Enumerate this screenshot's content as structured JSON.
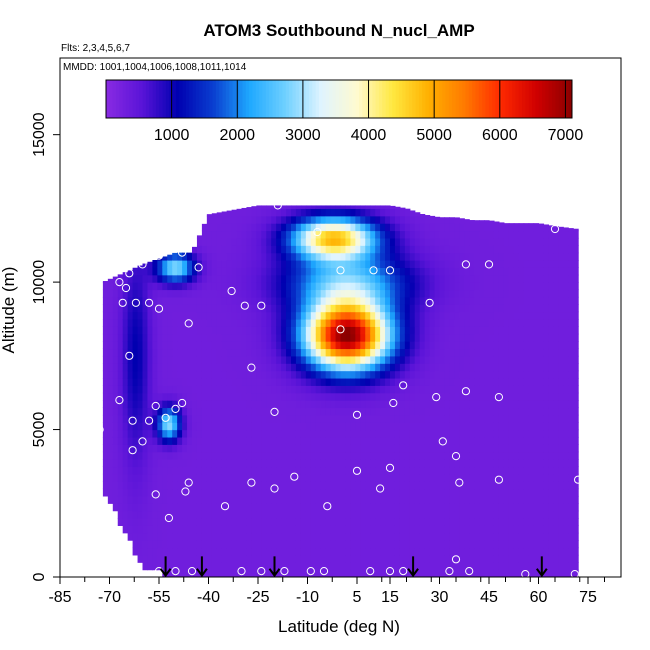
{
  "chart_data": {
    "type": "heatmap",
    "title": "ATOM3 Southbound N_nucl_AMP",
    "flights_label": "Flts: 2,3,4,5,6,7",
    "mmdd_label": "MMDD: 1001,1004,1006,1008,1011,1014",
    "xlabel": "Latitude (deg N)",
    "ylabel": "Altitude (m)",
    "xlim": [
      -85,
      85
    ],
    "ylim": [
      0,
      17600
    ],
    "x_ticks": [
      -85,
      -70,
      -55,
      -40,
      -25,
      -10,
      5,
      15,
      30,
      45,
      60,
      75
    ],
    "x_tick_labels": [
      "-85",
      "-70",
      "-55",
      "-40",
      "-25",
      "-10",
      "5",
      "15",
      "30",
      "45",
      "60",
      "75"
    ],
    "y_ticks": [
      0,
      5000,
      10000,
      15000
    ],
    "y_tick_labels": [
      "0",
      "5000",
      "10000",
      "15000"
    ],
    "colorbar": {
      "min": 0,
      "max": 7100,
      "ticks": [
        1000,
        2000,
        3000,
        4000,
        5000,
        6000,
        7000
      ],
      "tick_labels": [
        "1000",
        "2000",
        "3000",
        "4000",
        "5000",
        "6000",
        "7000"
      ],
      "colors": [
        "#8a2be2",
        "#5a14d8",
        "#0000b0",
        "#0a3fd0",
        "#1ea8ff",
        "#6fd0ff",
        "#dff4ff",
        "#fffad0",
        "#ffe840",
        "#ffb000",
        "#ff7a00",
        "#ff2a00",
        "#d00000",
        "#8a0000"
      ]
    },
    "background_value": 300,
    "field_envelope": {
      "lat": [
        -72,
        -60,
        -50,
        -45,
        -40,
        -35,
        -30,
        -25,
        -20,
        -15,
        -10,
        -5,
        0,
        5,
        10,
        15,
        20,
        25,
        30,
        35,
        40,
        45,
        50,
        55,
        60,
        65,
        72
      ],
      "top_m": [
        10000,
        10600,
        11000,
        11000,
        12300,
        12400,
        12500,
        12600,
        12600,
        12600,
        12600,
        12600,
        12600,
        12600,
        12600,
        12600,
        12500,
        12300,
        12200,
        12200,
        12100,
        12100,
        12000,
        12000,
        12000,
        11900,
        11800
      ],
      "bottom_m": [
        3000,
        300,
        0,
        0,
        0,
        0,
        0,
        0,
        0,
        0,
        0,
        0,
        0,
        0,
        0,
        0,
        0,
        0,
        0,
        0,
        0,
        0,
        0,
        0,
        0,
        0,
        0
      ]
    },
    "features": [
      {
        "lat": 2,
        "alt": 8200,
        "sx": 9,
        "sy": 800,
        "amp": 6800
      },
      {
        "lat": -2,
        "alt": 11500,
        "sx": 9,
        "sy": 500,
        "amp": 4400
      },
      {
        "lat": 2,
        "alt": 10000,
        "sx": 13,
        "sy": 700,
        "amp": 2200
      },
      {
        "lat": -50,
        "alt": 10500,
        "sx": 4,
        "sy": 350,
        "amp": 2600
      },
      {
        "lat": -52,
        "alt": 5200,
        "sx": 2.5,
        "sy": 400,
        "amp": 2600
      },
      {
        "lat": -62,
        "alt": 7500,
        "sx": 3,
        "sy": 2500,
        "amp": 800
      }
    ],
    "observations": [
      {
        "lat": -81,
        "alt": 9900
      },
      {
        "lat": -75,
        "alt": 9950
      },
      {
        "lat": -67,
        "alt": 10000
      },
      {
        "lat": -65,
        "alt": 9800
      },
      {
        "lat": -64,
        "alt": 10300
      },
      {
        "lat": -60,
        "alt": 10600
      },
      {
        "lat": -55,
        "alt": 10900
      },
      {
        "lat": -48,
        "alt": 11000
      },
      {
        "lat": -43,
        "alt": 10500
      },
      {
        "lat": -66,
        "alt": 9300
      },
      {
        "lat": -62,
        "alt": 9300
      },
      {
        "lat": -58,
        "alt": 9300
      },
      {
        "lat": -55,
        "alt": 9100
      },
      {
        "lat": -46,
        "alt": 8600
      },
      {
        "lat": -33,
        "alt": 9700
      },
      {
        "lat": -29,
        "alt": 9200
      },
      {
        "lat": -24,
        "alt": 9200
      },
      {
        "lat": -19,
        "alt": 12600
      },
      {
        "lat": -7,
        "alt": 11700
      },
      {
        "lat": 26,
        "alt": 12500
      },
      {
        "lat": 65,
        "alt": 11800
      },
      {
        "lat": 0,
        "alt": 10400
      },
      {
        "lat": 10,
        "alt": 10400
      },
      {
        "lat": 15,
        "alt": 10400
      },
      {
        "lat": 38,
        "alt": 10600
      },
      {
        "lat": 45,
        "alt": 10600
      },
      {
        "lat": 27,
        "alt": 9300
      },
      {
        "lat": 0,
        "alt": 8400
      },
      {
        "lat": -64,
        "alt": 7500
      },
      {
        "lat": -27,
        "alt": 7100
      },
      {
        "lat": 19,
        "alt": 6500
      },
      {
        "lat": 29,
        "alt": 6100
      },
      {
        "lat": 38,
        "alt": 6300
      },
      {
        "lat": 48,
        "alt": 6100
      },
      {
        "lat": -67,
        "alt": 6000
      },
      {
        "lat": -56,
        "alt": 5800
      },
      {
        "lat": -48,
        "alt": 5900
      },
      {
        "lat": -50,
        "alt": 5700
      },
      {
        "lat": 16,
        "alt": 5900
      },
      {
        "lat": -20,
        "alt": 5600
      },
      {
        "lat": 5,
        "alt": 5500
      },
      {
        "lat": -53,
        "alt": 5400
      },
      {
        "lat": -58,
        "alt": 5300
      },
      {
        "lat": -63,
        "alt": 5300
      },
      {
        "lat": -73,
        "alt": 5000
      },
      {
        "lat": -60,
        "alt": 4600
      },
      {
        "lat": -63,
        "alt": 4300
      },
      {
        "lat": 31,
        "alt": 4600
      },
      {
        "lat": 35,
        "alt": 4100
      },
      {
        "lat": 5,
        "alt": 3600
      },
      {
        "lat": 15,
        "alt": 3700
      },
      {
        "lat": -14,
        "alt": 3400
      },
      {
        "lat": -46,
        "alt": 3200
      },
      {
        "lat": -47,
        "alt": 2900
      },
      {
        "lat": -56,
        "alt": 2800
      },
      {
        "lat": -35,
        "alt": 2400
      },
      {
        "lat": -52,
        "alt": 2000
      },
      {
        "lat": -27,
        "alt": 3200
      },
      {
        "lat": -20,
        "alt": 3000
      },
      {
        "lat": -4,
        "alt": 2400
      },
      {
        "lat": 12,
        "alt": 3000
      },
      {
        "lat": 36,
        "alt": 3200
      },
      {
        "lat": 48,
        "alt": 3300
      },
      {
        "lat": 72,
        "alt": 3300
      },
      {
        "lat": -72,
        "alt": 200
      },
      {
        "lat": -66,
        "alt": 200
      },
      {
        "lat": -62,
        "alt": 200
      },
      {
        "lat": -55,
        "alt": 200
      },
      {
        "lat": -50,
        "alt": 200
      },
      {
        "lat": -45,
        "alt": 200
      },
      {
        "lat": -30,
        "alt": 200
      },
      {
        "lat": -24,
        "alt": 200
      },
      {
        "lat": -17,
        "alt": 200
      },
      {
        "lat": -9,
        "alt": 200
      },
      {
        "lat": -5,
        "alt": 200
      },
      {
        "lat": 9,
        "alt": 200
      },
      {
        "lat": 15,
        "alt": 200
      },
      {
        "lat": 19,
        "alt": 200
      },
      {
        "lat": 35,
        "alt": 600
      },
      {
        "lat": 33,
        "alt": 200
      },
      {
        "lat": 39,
        "alt": 200
      },
      {
        "lat": 56,
        "alt": 100
      },
      {
        "lat": 71,
        "alt": 100
      }
    ],
    "arrows_lat": [
      -53,
      -42,
      -20,
      22,
      61
    ]
  }
}
